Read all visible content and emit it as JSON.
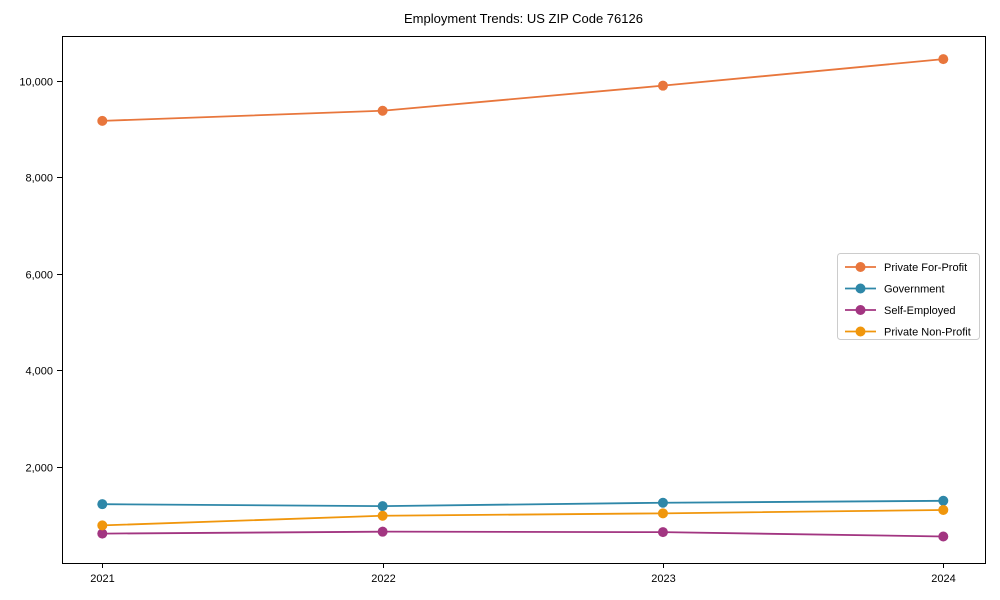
{
  "chart_data": {
    "type": "line",
    "title": "Employment Trends: US ZIP Code 76126",
    "xlabel": "",
    "ylabel": "",
    "categories": [
      "2021",
      "2022",
      "2023",
      "2024"
    ],
    "series": [
      {
        "name": "Private For-Profit",
        "color": "#E8763C",
        "values": [
          9170,
          9380,
          9900,
          10450
        ]
      },
      {
        "name": "Government",
        "color": "#2E87A8",
        "values": [
          1220,
          1180,
          1250,
          1290
        ]
      },
      {
        "name": "Self-Employed",
        "color": "#A23581",
        "values": [
          610,
          650,
          640,
          550
        ]
      },
      {
        "name": "Private Non-Profit",
        "color": "#F0960C",
        "values": [
          780,
          980,
          1030,
          1100
        ]
      }
    ],
    "ylim": [
      0,
      10930
    ],
    "yticks": [
      2000,
      4000,
      6000,
      8000,
      10000
    ],
    "ytick_labels": [
      "2,000",
      "4,000",
      "6,000",
      "8,000",
      "10,000"
    ],
    "grid": false,
    "legend_position": "center right",
    "marker": "circle",
    "colors": {
      "background": "#ffffff",
      "axis": "#000000",
      "tick_text": "#000000",
      "legend_border": "#cccccc",
      "legend_background": "#ffffff"
    }
  }
}
